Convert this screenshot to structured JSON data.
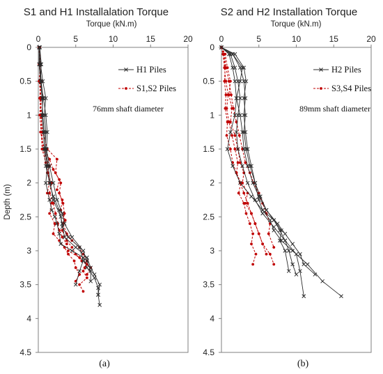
{
  "colors": {
    "h_series": "#2b2b2b",
    "s_series": "#c00000"
  },
  "chart_data": [
    {
      "type": "line",
      "title": "S1 and H1 Installalation Torque",
      "xlabel": "Torque (kN.m)",
      "ylabel": "Depth (m)",
      "x_ticks": [
        "0",
        "5",
        "10",
        "15",
        "20"
      ],
      "y_ticks": [
        "0",
        "0.5",
        "1",
        "1.5",
        "2",
        "2.5",
        "3",
        "3.5",
        "4",
        "4.5"
      ],
      "xlim": [
        0,
        20
      ],
      "ylim": [
        0,
        4.5
      ],
      "y_inverted": true,
      "x_axis_position": "top",
      "annotation": "76mm shaft diameter",
      "panel_label": "(a)",
      "legend": [
        {
          "label": "H1 Piles",
          "series_group": "H",
          "marker": "x",
          "line": "solid"
        },
        {
          "label": "S1,S2 Piles",
          "series_group": "S",
          "marker": "dot",
          "line": "dashed"
        }
      ],
      "series": [
        {
          "group": "H",
          "x": [
            0.2,
            0.3,
            0.6,
            1.0,
            0.8,
            1.0,
            0.9,
            1.2,
            1.0,
            1.5,
            1.8,
            2.2,
            2.5,
            2.8,
            3.0,
            4.5,
            6.0,
            6.5,
            7.5,
            8.0,
            8.0,
            8.2
          ],
          "y": [
            0,
            0.25,
            0.5,
            0.75,
            1.0,
            1.25,
            1.5,
            1.75,
            2.0,
            2.25,
            2.4,
            2.5,
            2.6,
            2.75,
            2.9,
            3.0,
            3.1,
            3.25,
            3.4,
            3.55,
            3.65,
            3.8
          ]
        },
        {
          "group": "H",
          "x": [
            0.1,
            0.2,
            0.4,
            0.6,
            0.5,
            0.7,
            0.8,
            1.0,
            1.5,
            2.0,
            2.8,
            3.2,
            3.5,
            5.0,
            6.5,
            7.0,
            7.5,
            8.2,
            8.0
          ],
          "y": [
            0,
            0.25,
            0.5,
            0.75,
            1.0,
            1.25,
            1.5,
            1.75,
            2.0,
            2.2,
            2.4,
            2.6,
            2.8,
            2.95,
            3.1,
            3.25,
            3.35,
            3.5,
            3.65
          ]
        },
        {
          "group": "H",
          "x": [
            0.1,
            0.1,
            0.3,
            0.5,
            0.6,
            0.8,
            1.0,
            1.3,
            1.6,
            2.0,
            3.0,
            3.2,
            4.0,
            5.5,
            6.0,
            5.5,
            5.0
          ],
          "y": [
            0,
            0.25,
            0.5,
            0.75,
            1.0,
            1.25,
            1.5,
            1.75,
            2.0,
            2.25,
            2.5,
            2.65,
            2.8,
            2.95,
            3.15,
            3.3,
            3.5
          ]
        },
        {
          "group": "H",
          "x": [
            0.2,
            0.4,
            0.3,
            0.7,
            1.0,
            1.2,
            1.1,
            1.5,
            2.0,
            2.5,
            3.2,
            3.5,
            4.5,
            6.0,
            6.5,
            7.0,
            7.0
          ],
          "y": [
            0,
            0.25,
            0.5,
            0.75,
            1.0,
            1.25,
            1.5,
            1.75,
            2.0,
            2.25,
            2.45,
            2.6,
            2.8,
            3.0,
            3.15,
            3.3,
            3.45
          ]
        },
        {
          "group": "S",
          "x": [
            0.1,
            0.2,
            0.3,
            0.2,
            0.4,
            0.5,
            0.6,
            1.5,
            1.2,
            1.8,
            1.5,
            2.0,
            2.3,
            2.6,
            2.8,
            3.2,
            3.8,
            4.0,
            5.5,
            6.5,
            6.0,
            6.5,
            5.5,
            6.0
          ],
          "y": [
            0,
            0.25,
            0.5,
            0.75,
            1.0,
            1.25,
            1.5,
            1.75,
            1.85,
            2.0,
            2.15,
            2.3,
            2.45,
            2.6,
            2.7,
            2.8,
            2.9,
            3.0,
            3.1,
            3.2,
            3.3,
            3.4,
            3.5,
            3.6
          ]
        },
        {
          "group": "S",
          "x": [
            0.1,
            0.3,
            0.1,
            0.4,
            0.3,
            0.6,
            1.2,
            2.5,
            2.3,
            3.0,
            2.8,
            3.3,
            3.5,
            3.3,
            3.8,
            4.5,
            5.5,
            6.0,
            6.5,
            6.2
          ],
          "y": [
            0,
            0.25,
            0.5,
            0.75,
            1.0,
            1.25,
            1.5,
            1.65,
            1.85,
            2.0,
            2.15,
            2.3,
            2.45,
            2.6,
            2.75,
            2.85,
            2.95,
            3.05,
            3.15,
            3.25
          ]
        },
        {
          "group": "S",
          "x": [
            0.1,
            0.2,
            0.2,
            0.3,
            0.2,
            0.4,
            0.5,
            1.0,
            1.3,
            1.5,
            1.2,
            1.8,
            1.5,
            2.2,
            2.0,
            2.8,
            3.5,
            4.0,
            4.8,
            5.0,
            5.5,
            5.0
          ],
          "y": [
            0,
            0.25,
            0.5,
            0.75,
            1.0,
            1.25,
            1.5,
            1.7,
            1.85,
            2.0,
            2.15,
            2.3,
            2.45,
            2.6,
            2.75,
            2.85,
            2.95,
            3.05,
            3.15,
            3.25,
            3.35,
            3.45
          ]
        },
        {
          "group": "S",
          "x": [
            0.2,
            0.1,
            0.4,
            0.2,
            0.5,
            0.3,
            0.8,
            1.5,
            2.0,
            2.8,
            2.5,
            3.2,
            3.0,
            3.6,
            3.2,
            3.8,
            4.5,
            5.0,
            5.8,
            7.0,
            6.5
          ],
          "y": [
            0,
            0.25,
            0.5,
            0.75,
            1.0,
            1.25,
            1.5,
            1.65,
            1.8,
            1.95,
            2.1,
            2.25,
            2.4,
            2.55,
            2.7,
            2.85,
            2.95,
            3.05,
            3.15,
            3.25,
            3.35
          ]
        }
      ]
    },
    {
      "type": "line",
      "title": "S2 and H2 Installation Torque",
      "xlabel": "Torque (kN.m)",
      "ylabel": "",
      "x_ticks": [
        "0",
        "5",
        "10",
        "15",
        "20"
      ],
      "y_ticks": [
        "0",
        "0.5",
        "1",
        "1.5",
        "2",
        "2.5",
        "3",
        "3.5",
        "4",
        "4.5"
      ],
      "xlim": [
        0,
        20
      ],
      "ylim": [
        0,
        4.5
      ],
      "y_inverted": true,
      "x_axis_position": "top",
      "annotation": "89mm shaft diameter",
      "panel_label": "(b)",
      "legend": [
        {
          "label": "H2 Piles",
          "series_group": "H",
          "marker": "x",
          "line": "solid"
        },
        {
          "label": "S3,S4 Piles",
          "series_group": "S",
          "marker": "dot",
          "line": "dashed"
        }
      ],
      "series": [
        {
          "group": "H",
          "x": [
            0,
            1.5,
            2.5,
            3.0,
            3.2,
            3.0,
            3.2,
            3.5,
            4.0,
            4.5,
            5.0,
            5.5,
            6.5,
            7.0,
            8.0,
            9.5,
            11.5,
            13.5,
            16.0
          ],
          "y": [
            0,
            0.1,
            0.3,
            0.5,
            0.75,
            1.0,
            1.25,
            1.5,
            1.75,
            2.0,
            2.25,
            2.4,
            2.55,
            2.7,
            2.85,
            3.0,
            3.2,
            3.45,
            3.67
          ]
        },
        {
          "group": "H",
          "x": [
            0,
            1.2,
            1.8,
            2.2,
            2.5,
            2.2,
            2.0,
            2.2,
            2.8,
            3.5,
            4.5,
            5.5,
            7.0,
            8.5,
            10.0,
            10.5,
            11.0
          ],
          "y": [
            0,
            0.1,
            0.3,
            0.5,
            0.75,
            1.0,
            1.25,
            1.5,
            1.75,
            2.0,
            2.25,
            2.45,
            2.65,
            2.85,
            3.05,
            3.3,
            3.67
          ]
        },
        {
          "group": "H",
          "x": [
            0,
            1.8,
            3.0,
            3.3,
            3.0,
            3.2,
            3.0,
            3.3,
            3.8,
            4.5,
            5.2,
            6.0,
            7.0,
            7.8,
            8.5,
            9.0,
            9.5,
            10.0
          ],
          "y": [
            0,
            0.1,
            0.3,
            0.5,
            0.75,
            1.0,
            1.25,
            1.5,
            1.75,
            2.0,
            2.2,
            2.4,
            2.55,
            2.7,
            2.85,
            3.0,
            3.2,
            3.35
          ]
        },
        {
          "group": "H",
          "x": [
            0,
            1.0,
            1.5,
            1.8,
            2.0,
            1.8,
            1.2,
            0.8,
            1.5,
            2.5,
            4.0,
            5.5,
            7.0,
            8.0,
            7.8,
            8.5,
            9.0
          ],
          "y": [
            0,
            0.1,
            0.3,
            0.5,
            0.75,
            1.0,
            1.25,
            1.5,
            1.75,
            2.0,
            2.2,
            2.4,
            2.55,
            2.7,
            2.85,
            3.0,
            3.3
          ]
        },
        {
          "group": "H",
          "x": [
            0,
            1.5,
            2.8,
            2.5,
            2.0,
            2.5,
            2.8,
            3.0,
            3.5,
            4.2,
            5.0,
            6.0,
            7.5,
            8.5,
            9.5,
            10.5,
            11.0,
            12.5
          ],
          "y": [
            0,
            0.1,
            0.3,
            0.5,
            0.75,
            1.0,
            1.25,
            1.5,
            1.75,
            2.0,
            2.2,
            2.4,
            2.6,
            2.75,
            2.9,
            3.05,
            3.2,
            3.35
          ]
        },
        {
          "group": "S",
          "x": [
            0,
            0.3,
            0.5,
            0.4,
            0.6,
            0.5,
            0.8,
            0.7,
            1.2,
            1.5,
            2.0,
            2.5,
            3.0,
            3.5,
            4.0,
            4.5,
            5.0,
            5.5,
            6.5,
            7.0
          ],
          "y": [
            0,
            0.1,
            0.3,
            0.5,
            0.7,
            0.9,
            1.1,
            1.3,
            1.5,
            1.7,
            1.85,
            2.0,
            2.15,
            2.3,
            2.45,
            2.6,
            2.75,
            2.9,
            3.05,
            3.2
          ]
        },
        {
          "group": "S",
          "x": [
            0,
            0.5,
            0.8,
            1.2,
            1.0,
            1.4,
            1.2,
            1.8,
            2.2,
            2.5,
            3.0,
            2.8,
            3.5,
            3.2,
            4.0,
            4.5,
            5.0,
            5.5,
            6.0
          ],
          "y": [
            0,
            0.1,
            0.3,
            0.5,
            0.7,
            0.9,
            1.1,
            1.3,
            1.5,
            1.7,
            1.85,
            2.0,
            2.15,
            2.3,
            2.45,
            2.6,
            2.75,
            2.9,
            3.05
          ]
        },
        {
          "group": "S",
          "x": [
            0,
            0.2,
            0.4,
            0.6,
            0.9,
            0.7,
            1.0,
            1.4,
            1.8,
            2.2,
            2.0,
            2.6,
            2.3,
            3.0,
            3.3,
            3.8,
            4.2,
            4.0,
            4.6,
            4.2
          ],
          "y": [
            0,
            0.1,
            0.3,
            0.5,
            0.7,
            0.9,
            1.1,
            1.3,
            1.5,
            1.7,
            1.85,
            2.0,
            2.15,
            2.3,
            2.45,
            2.6,
            2.75,
            2.9,
            3.05,
            3.2
          ]
        },
        {
          "group": "S",
          "x": [
            0,
            0.4,
            0.6,
            1.0,
            1.3,
            1.6,
            2.0,
            2.4,
            2.8,
            3.2,
            3.8,
            4.3,
            5.0,
            5.5,
            6.0,
            6.5,
            6.3,
            7.0
          ],
          "y": [
            0,
            0.1,
            0.3,
            0.5,
            0.7,
            0.9,
            1.1,
            1.3,
            1.5,
            1.7,
            1.85,
            2.0,
            2.15,
            2.3,
            2.45,
            2.6,
            2.75,
            2.95
          ]
        }
      ]
    }
  ]
}
